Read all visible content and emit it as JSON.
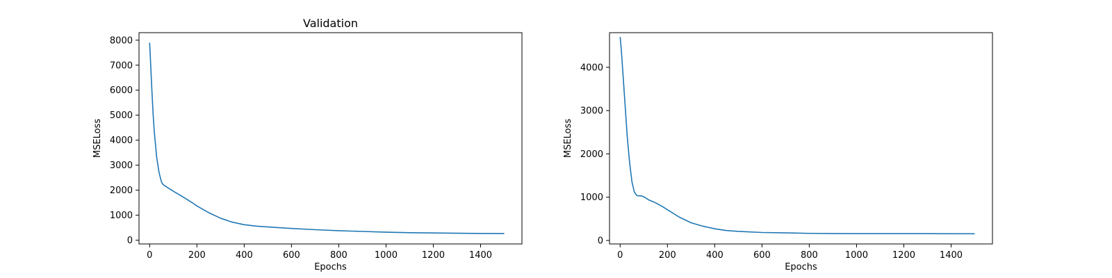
{
  "chart_data": [
    {
      "type": "line",
      "title": "Validation",
      "xlabel": "Epochs",
      "ylabel": "MSELoss",
      "xlim": [
        -45,
        1575
      ],
      "ylim": [
        -150,
        8300
      ],
      "xticks": [
        0,
        200,
        400,
        600,
        800,
        1000,
        1200,
        1400
      ],
      "yticks": [
        0,
        1000,
        2000,
        3000,
        4000,
        5000,
        6000,
        7000,
        8000
      ],
      "grid": false,
      "series": [
        {
          "color": "#1f77b4",
          "x": [
            0,
            5,
            10,
            15,
            20,
            30,
            40,
            50,
            55,
            60,
            70,
            80,
            100,
            120,
            150,
            180,
            200,
            250,
            300,
            350,
            400,
            450,
            500,
            600,
            700,
            800,
            900,
            1000,
            1100,
            1200,
            1300,
            1400,
            1500
          ],
          "y": [
            7900,
            6900,
            5900,
            5000,
            4300,
            3300,
            2700,
            2330,
            2250,
            2200,
            2140,
            2080,
            1960,
            1850,
            1680,
            1500,
            1370,
            1100,
            880,
            720,
            620,
            565,
            530,
            470,
            420,
            380,
            350,
            320,
            300,
            290,
            280,
            270,
            265
          ]
        }
      ]
    },
    {
      "type": "line",
      "title": "",
      "xlabel": "Epochs",
      "ylabel": "MSELoss",
      "xlim": [
        -45,
        1575
      ],
      "ylim": [
        -80,
        4800
      ],
      "xticks": [
        0,
        200,
        400,
        600,
        800,
        1000,
        1200,
        1400
      ],
      "yticks": [
        0,
        1000,
        2000,
        3000,
        4000
      ],
      "grid": false,
      "series": [
        {
          "color": "#1f77b4",
          "x": [
            0,
            5,
            10,
            15,
            20,
            30,
            40,
            50,
            60,
            70,
            80,
            90,
            100,
            120,
            150,
            180,
            200,
            250,
            300,
            350,
            400,
            450,
            500,
            600,
            700,
            800,
            900,
            1000,
            1100,
            1200,
            1300,
            1400,
            1500
          ],
          "y": [
            4700,
            4400,
            4000,
            3600,
            3200,
            2400,
            1800,
            1350,
            1120,
            1040,
            1030,
            1030,
            1010,
            940,
            870,
            780,
            710,
            540,
            410,
            330,
            270,
            230,
            210,
            185,
            175,
            165,
            160,
            158,
            158,
            158,
            158,
            155,
            155
          ]
        }
      ]
    }
  ]
}
